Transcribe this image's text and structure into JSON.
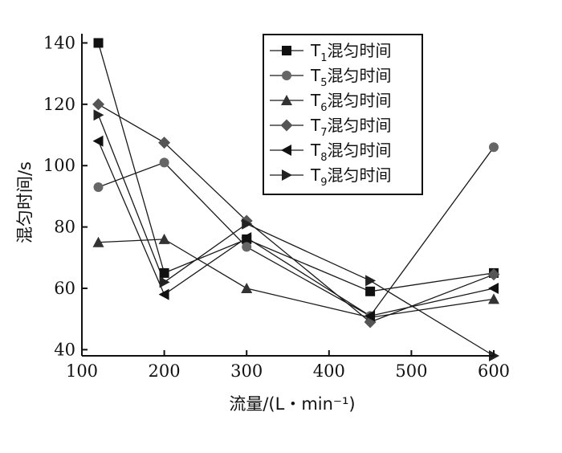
{
  "chart_data": {
    "type": "line",
    "xlabel": "流量/(L・min⁻¹)",
    "ylabel": "混匀时间/s",
    "xlim": [
      100,
      600
    ],
    "ylim": [
      38,
      143
    ],
    "xticks": [
      100,
      200,
      300,
      400,
      500,
      600
    ],
    "yticks": [
      40,
      60,
      80,
      100,
      120,
      140
    ],
    "grid": false,
    "legend_position": "top-right",
    "series": [
      {
        "name_base": "T",
        "name_sub": "1",
        "name_suffix": "混匀时间",
        "marker": "square",
        "x": [
          120,
          200,
          300,
          450,
          600
        ],
        "y": [
          140,
          65,
          76,
          59,
          65
        ]
      },
      {
        "name_base": "T",
        "name_sub": "5",
        "name_suffix": "混匀时间",
        "marker": "circle",
        "x": [
          120,
          200,
          300,
          450,
          600
        ],
        "y": [
          93,
          101,
          73.5,
          51,
          106
        ]
      },
      {
        "name_base": "T",
        "name_sub": "6",
        "name_suffix": "混匀时间",
        "marker": "triangle-up",
        "x": [
          120,
          200,
          300,
          450,
          600
        ],
        "y": [
          75,
          76,
          60,
          50.5,
          56.5
        ]
      },
      {
        "name_base": "T",
        "name_sub": "7",
        "name_suffix": "混匀时间",
        "marker": "diamond",
        "x": [
          120,
          200,
          300,
          450,
          600
        ],
        "y": [
          120,
          107.5,
          82,
          49,
          64.5
        ]
      },
      {
        "name_base": "T",
        "name_sub": "8",
        "name_suffix": "混匀时间",
        "marker": "triangle-left",
        "x": [
          120,
          200,
          300,
          450,
          600
        ],
        "y": [
          108,
          58,
          76.5,
          51,
          60
        ]
      },
      {
        "name_base": "T",
        "name_sub": "9",
        "name_suffix": "混匀时间",
        "marker": "triangle-right",
        "x": [
          120,
          200,
          300,
          450,
          600
        ],
        "y": [
          116.5,
          62,
          81,
          62.5,
          38
        ]
      }
    ]
  }
}
